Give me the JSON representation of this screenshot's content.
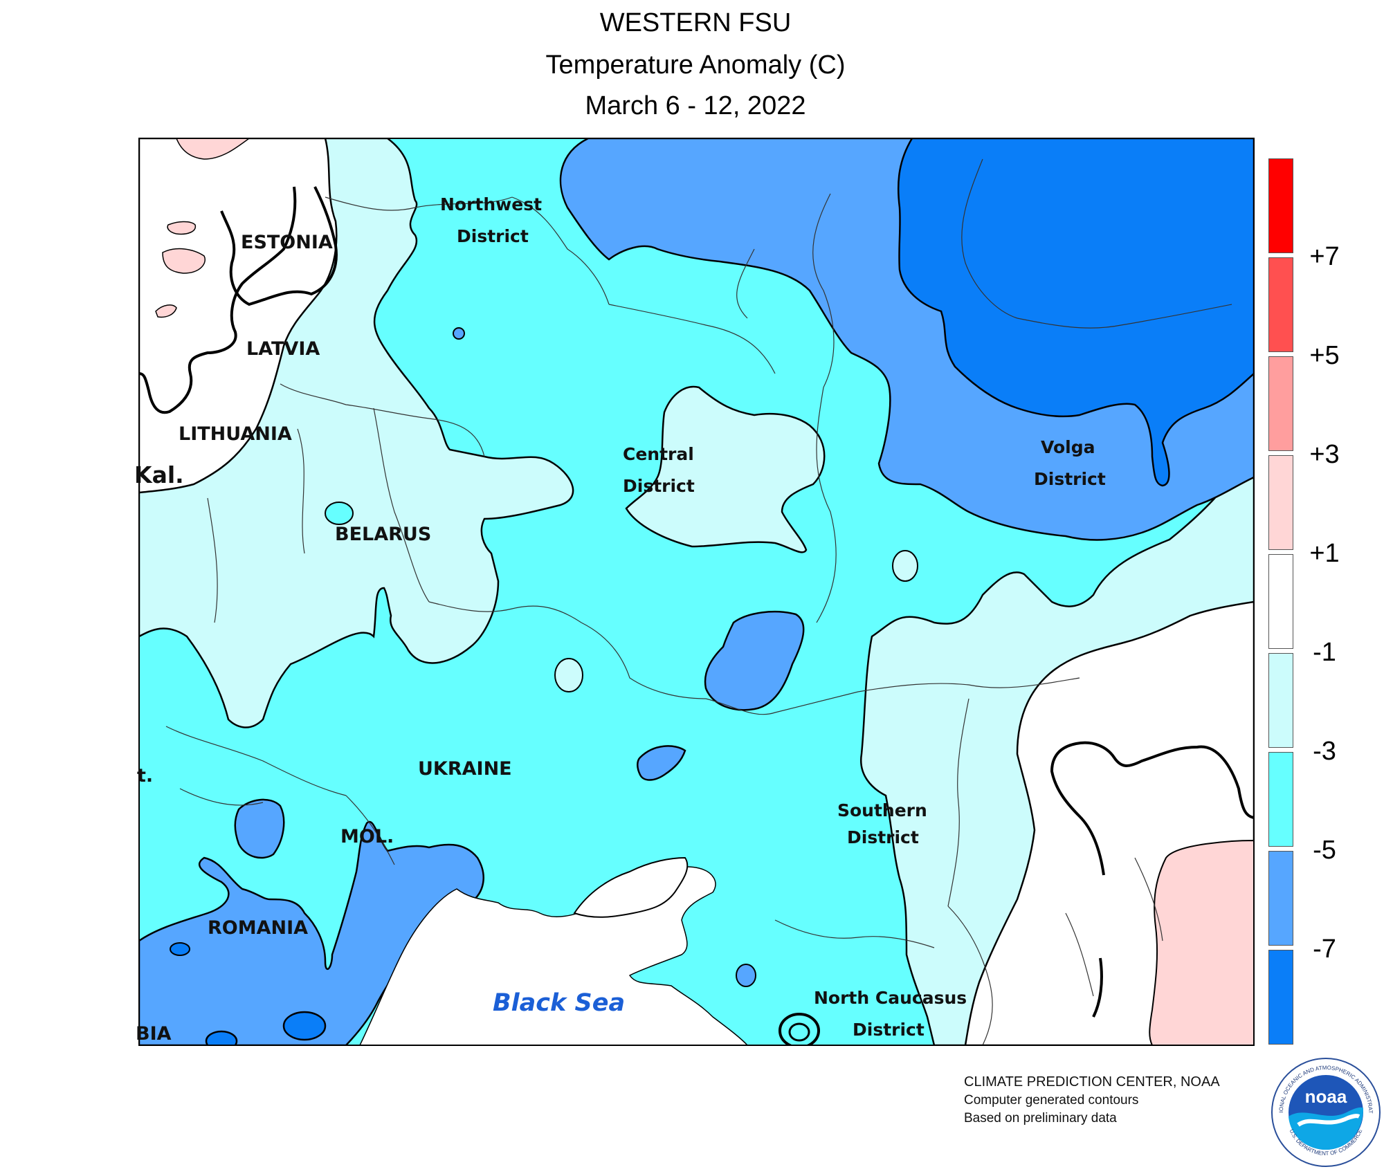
{
  "header": {
    "region": "WESTERN FSU",
    "variable": "Temperature Anomaly (C)",
    "period": "March 6 - 12, 2022"
  },
  "map_labels": {
    "estonia": "ESTONIA",
    "latvia": "LATVIA",
    "lithuania": "LITHUANIA",
    "kaliningrad": "Kal.",
    "belarus": "BELARUS",
    "ukraine": "UKRAINE",
    "moldova": "MOL.",
    "romania": "ROMANIA",
    "bulgaria": "BIA",
    "partial_left": "t.",
    "northwest_1": "Northwest",
    "northwest_2": "District",
    "central_1": "Central",
    "central_2": "District",
    "volga_1": "Volga",
    "volga_2": "District",
    "southern_1": "Southern",
    "southern_2": "District",
    "ncaucasus_1": "North Caucasus",
    "ncaucasus_2": "District",
    "black_sea": "Black Sea"
  },
  "legend": {
    "colors": [
      "#ff0000",
      "#ff5050",
      "#ff9e9e",
      "#ffd6d6",
      "#ffffff",
      "#ccfcfc",
      "#66ffff",
      "#56a6ff",
      "#0a7ef8"
    ],
    "labels": [
      "+7",
      "+5",
      "+3",
      "+1",
      "-1",
      "-3",
      "-5",
      "-7"
    ]
  },
  "credits": {
    "line1": "CLIMATE PREDICTION CENTER, NOAA",
    "line2": "Computer generated contours",
    "line3": "Based on preliminary data"
  },
  "logo": {
    "text": "noaa",
    "ring_top": "NATIONAL OCEANIC AND ATMOSPHERIC ADMINISTRATION",
    "ring_bottom": "U.S. DEPARTMENT OF COMMERCE"
  }
}
